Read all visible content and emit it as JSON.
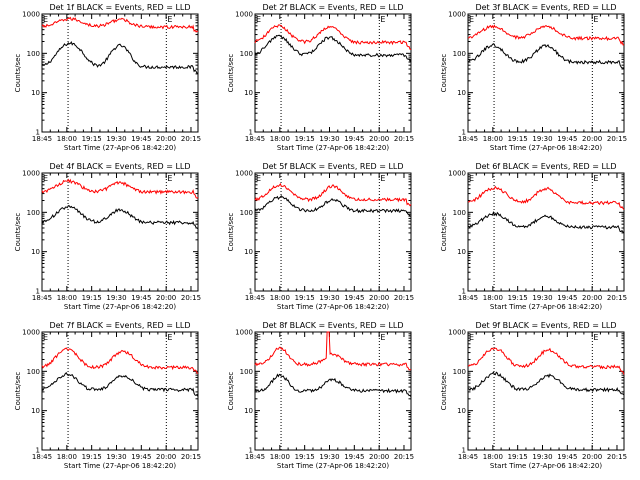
{
  "chart_data": [
    {
      "type": "line",
      "title": "Det 1f BLACK = Events, RED = LLD",
      "xlabel": "Start Time (27-Apr-06 18:42:20)",
      "ylabel": "Counts/sec",
      "yscale": "log",
      "ylim": [
        1,
        1000
      ],
      "x_ticks": [
        "18:45",
        "18:00",
        "19:15",
        "19:30",
        "19:45",
        "20:00",
        "20:15"
      ],
      "y_ticks": [
        "1",
        "10",
        "100",
        "1000"
      ],
      "markers": [
        "E",
        "E"
      ],
      "marker_x": [
        0.0,
        0.797
      ],
      "vlines_x": [
        0.167,
        0.797
      ],
      "series": [
        {
          "color": "#000000",
          "base": 45,
          "peaks": [
            {
              "x": 0.18,
              "a": 3.0,
              "w": 0.09
            },
            {
              "x": 0.5,
              "a": 2.5,
              "w": 0.07
            }
          ]
        },
        {
          "color": "#ff0000",
          "base": 470,
          "peaks": [
            {
              "x": 0.18,
              "a": 0.6,
              "w": 0.1
            },
            {
              "x": 0.5,
              "a": 0.55,
              "w": 0.08
            }
          ]
        }
      ]
    },
    {
      "type": "line",
      "title": "Det 2f BLACK = Events, RED = LLD",
      "xlabel": "Start Time (27-Apr-06 18:42:20)",
      "ylabel": "Counts/sec",
      "yscale": "log",
      "ylim": [
        1,
        1000
      ],
      "x_ticks": [
        "18:45",
        "18:00",
        "19:15",
        "19:30",
        "19:45",
        "20:00",
        "20:15"
      ],
      "y_ticks": [
        "1",
        "10",
        "100",
        "1000"
      ],
      "markers": [
        "E",
        "E"
      ],
      "marker_x": [
        0.0,
        0.797
      ],
      "vlines_x": [
        0.167,
        0.797
      ],
      "series": [
        {
          "color": "#000000",
          "base": 90,
          "peaks": [
            {
              "x": 0.15,
              "a": 2.0,
              "w": 0.08
            },
            {
              "x": 0.48,
              "a": 1.8,
              "w": 0.08
            }
          ]
        },
        {
          "color": "#ff0000",
          "base": 190,
          "peaks": [
            {
              "x": 0.15,
              "a": 1.6,
              "w": 0.08
            },
            {
              "x": 0.48,
              "a": 1.5,
              "w": 0.08
            }
          ]
        }
      ]
    },
    {
      "type": "line",
      "title": "Det 3f BLACK = Events, RED = LLD",
      "xlabel": "Start Time (27-Apr-06 18:42:20)",
      "ylabel": "Counts/sec",
      "yscale": "log",
      "ylim": [
        1,
        1000
      ],
      "x_ticks": [
        "18:45",
        "18:00",
        "19:15",
        "19:30",
        "19:45",
        "20:00",
        "20:15"
      ],
      "y_ticks": [
        "1",
        "10",
        "100",
        "1000"
      ],
      "markers": [
        "E",
        "E"
      ],
      "marker_x": [
        0.0,
        0.797
      ],
      "vlines_x": [
        0.167,
        0.797
      ],
      "series": [
        {
          "color": "#000000",
          "base": 60,
          "peaks": [
            {
              "x": 0.16,
              "a": 1.7,
              "w": 0.08
            },
            {
              "x": 0.5,
              "a": 1.6,
              "w": 0.08
            }
          ]
        },
        {
          "color": "#ff0000",
          "base": 240,
          "peaks": [
            {
              "x": 0.16,
              "a": 1.0,
              "w": 0.09
            },
            {
              "x": 0.5,
              "a": 1.0,
              "w": 0.09
            }
          ]
        }
      ]
    },
    {
      "type": "line",
      "title": "Det 4f BLACK = Events, RED = LLD",
      "xlabel": "Start Time (27-Apr-06 18:42:20)",
      "ylabel": "Counts/sec",
      "yscale": "log",
      "ylim": [
        1,
        1000
      ],
      "x_ticks": [
        "18:45",
        "18:00",
        "19:15",
        "19:30",
        "19:45",
        "20:00",
        "20:15"
      ],
      "y_ticks": [
        "1",
        "10",
        "100",
        "1000"
      ],
      "markers": [
        "E",
        "E"
      ],
      "marker_x": [
        0.0,
        0.797
      ],
      "vlines_x": [
        0.167,
        0.797
      ],
      "series": [
        {
          "color": "#000000",
          "base": 55,
          "peaks": [
            {
              "x": 0.17,
              "a": 1.5,
              "w": 0.09
            },
            {
              "x": 0.5,
              "a": 1.1,
              "w": 0.08
            }
          ]
        },
        {
          "color": "#ff0000",
          "base": 330,
          "peaks": [
            {
              "x": 0.17,
              "a": 0.9,
              "w": 0.09
            },
            {
              "x": 0.5,
              "a": 0.7,
              "w": 0.08
            }
          ]
        }
      ]
    },
    {
      "type": "line",
      "title": "Det 5f BLACK = Events, RED = LLD",
      "xlabel": "Start Time (27-Apr-06 18:42:20)",
      "ylabel": "Counts/sec",
      "yscale": "log",
      "ylim": [
        1,
        1000
      ],
      "x_ticks": [
        "18:45",
        "18:00",
        "19:15",
        "19:30",
        "19:45",
        "20:00",
        "20:15"
      ],
      "y_ticks": [
        "1",
        "10",
        "100",
        "1000"
      ],
      "markers": [
        "E",
        "E"
      ],
      "marker_x": [
        0.0,
        0.797
      ],
      "vlines_x": [
        0.167,
        0.797
      ],
      "series": [
        {
          "color": "#000000",
          "base": 110,
          "peaks": [
            {
              "x": 0.16,
              "a": 1.2,
              "w": 0.08
            },
            {
              "x": 0.5,
              "a": 0.9,
              "w": 0.07
            }
          ]
        },
        {
          "color": "#ff0000",
          "base": 210,
          "peaks": [
            {
              "x": 0.16,
              "a": 1.4,
              "w": 0.08
            },
            {
              "x": 0.5,
              "a": 1.2,
              "w": 0.07
            }
          ]
        }
      ]
    },
    {
      "type": "line",
      "title": "Det 6f BLACK = Events, RED = LLD",
      "xlabel": "Start Time (27-Apr-06 18:42:20)",
      "ylabel": "Counts/sec",
      "yscale": "log",
      "ylim": [
        1,
        1000
      ],
      "x_ticks": [
        "18:45",
        "18:00",
        "19:15",
        "19:30",
        "19:45",
        "20:00",
        "20:15"
      ],
      "y_ticks": [
        "1",
        "10",
        "100",
        "1000"
      ],
      "markers": [
        "E",
        "E"
      ],
      "marker_x": [
        0.0,
        0.797
      ],
      "vlines_x": [
        0.167,
        0.797
      ],
      "series": [
        {
          "color": "#000000",
          "base": 42,
          "peaks": [
            {
              "x": 0.17,
              "a": 1.2,
              "w": 0.09
            },
            {
              "x": 0.5,
              "a": 0.9,
              "w": 0.08
            }
          ]
        },
        {
          "color": "#ff0000",
          "base": 175,
          "peaks": [
            {
              "x": 0.17,
              "a": 1.4,
              "w": 0.09
            },
            {
              "x": 0.5,
              "a": 1.3,
              "w": 0.08
            }
          ]
        }
      ]
    },
    {
      "type": "line",
      "title": "Det 7f BLACK = Events, RED = LLD",
      "xlabel": "Start Time (27-Apr-06 18:42:20)",
      "ylabel": "Counts/sec",
      "yscale": "log",
      "ylim": [
        1,
        1000
      ],
      "x_ticks": [
        "18:45",
        "18:00",
        "19:15",
        "19:30",
        "19:45",
        "20:00",
        "20:15"
      ],
      "y_ticks": [
        "1",
        "10",
        "100",
        "1000"
      ],
      "markers": [
        "E",
        "E"
      ],
      "marker_x": [
        0.0,
        0.797
      ],
      "vlines_x": [
        0.167,
        0.797
      ],
      "series": [
        {
          "color": "#000000",
          "base": 34,
          "peaks": [
            {
              "x": 0.16,
              "a": 1.5,
              "w": 0.08
            },
            {
              "x": 0.52,
              "a": 1.3,
              "w": 0.08
            }
          ]
        },
        {
          "color": "#ff0000",
          "base": 125,
          "peaks": [
            {
              "x": 0.16,
              "a": 1.9,
              "w": 0.08
            },
            {
              "x": 0.52,
              "a": 1.6,
              "w": 0.08
            }
          ]
        }
      ]
    },
    {
      "type": "line",
      "title": "Det 8f BLACK = Events, RED = LLD",
      "xlabel": "Start Time (27-Apr-06 18:42:20)",
      "ylabel": "Counts/sec",
      "yscale": "log",
      "ylim": [
        1,
        1000
      ],
      "x_ticks": [
        "18:45",
        "18:00",
        "19:15",
        "19:30",
        "19:45",
        "20:00",
        "20:15"
      ],
      "y_ticks": [
        "1",
        "10",
        "100",
        "1000"
      ],
      "markers": [
        "E",
        "E"
      ],
      "marker_x": [
        0.0,
        0.797
      ],
      "vlines_x": [
        0.167,
        0.797
      ],
      "series": [
        {
          "color": "#000000",
          "base": 32,
          "peaks": [
            {
              "x": 0.16,
              "a": 1.5,
              "w": 0.06
            },
            {
              "x": 0.5,
              "a": 0.9,
              "w": 0.07
            }
          ]
        },
        {
          "color": "#ff0000",
          "base": 150,
          "peaks": [
            {
              "x": 0.16,
              "a": 1.6,
              "w": 0.06
            },
            {
              "x": 0.5,
              "a": 0.8,
              "w": 0.07
            }
          ],
          "spike": {
            "x0": 0.46,
            "x1": 0.48,
            "value": 1000
          }
        }
      ]
    },
    {
      "type": "line",
      "title": "Det 9f BLACK = Events, RED = LLD",
      "xlabel": "Start Time (27-Apr-06 18:42:20)",
      "ylabel": "Counts/sec",
      "yscale": "log",
      "ylim": [
        1,
        1000
      ],
      "x_ticks": [
        "18:45",
        "18:00",
        "19:15",
        "19:30",
        "19:45",
        "20:00",
        "20:15"
      ],
      "y_ticks": [
        "1",
        "10",
        "100",
        "1000"
      ],
      "markers": [
        "E",
        "E"
      ],
      "marker_x": [
        0.0,
        0.797
      ],
      "vlines_x": [
        0.167,
        0.797
      ],
      "series": [
        {
          "color": "#000000",
          "base": 34,
          "peaks": [
            {
              "x": 0.17,
              "a": 1.6,
              "w": 0.08
            },
            {
              "x": 0.52,
              "a": 1.3,
              "w": 0.08
            }
          ]
        },
        {
          "color": "#ff0000",
          "base": 130,
          "peaks": [
            {
              "x": 0.17,
              "a": 2.0,
              "w": 0.08
            },
            {
              "x": 0.52,
              "a": 1.7,
              "w": 0.08
            }
          ]
        }
      ]
    }
  ]
}
